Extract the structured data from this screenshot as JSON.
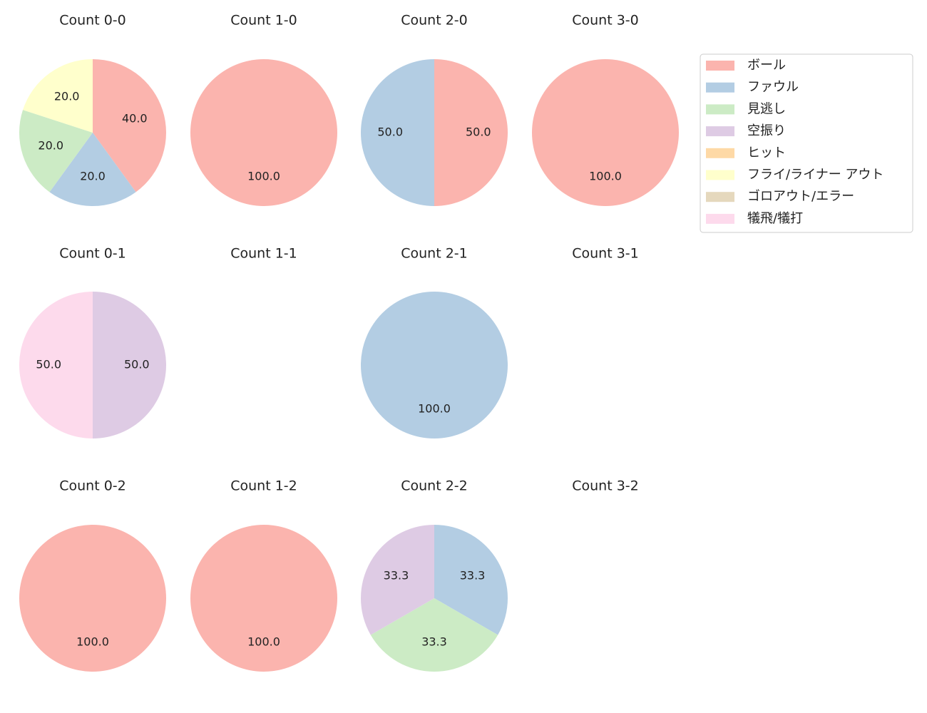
{
  "chart_data": [
    {
      "type": "pie",
      "title": "Count 0-0",
      "categories": [
        "ボール",
        "ファウル",
        "見逃し",
        "フライ/ライナー アウト"
      ],
      "values": [
        40,
        20,
        20,
        20
      ],
      "value_labels": [
        "40.0",
        "20.0",
        "20.0",
        "20.0"
      ]
    },
    {
      "type": "pie",
      "title": "Count 1-0",
      "categories": [
        "ボール"
      ],
      "values": [
        100
      ],
      "value_labels": [
        "100.0"
      ]
    },
    {
      "type": "pie",
      "title": "Count 2-0",
      "categories": [
        "ボール",
        "ファウル"
      ],
      "values": [
        50,
        50
      ],
      "value_labels": [
        "50.0",
        "50.0"
      ]
    },
    {
      "type": "pie",
      "title": "Count 3-0",
      "categories": [
        "ボール"
      ],
      "values": [
        100
      ],
      "value_labels": [
        "100.0"
      ]
    },
    {
      "type": "pie",
      "title": "Count 0-1",
      "categories": [
        "空振り",
        "犠飛/犠打"
      ],
      "values": [
        50,
        50
      ],
      "value_labels": [
        "50.0",
        "50.0"
      ]
    },
    {
      "type": "pie",
      "title": "Count 1-1",
      "categories": [],
      "values": [],
      "value_labels": []
    },
    {
      "type": "pie",
      "title": "Count 2-1",
      "categories": [
        "ファウル"
      ],
      "values": [
        100
      ],
      "value_labels": [
        "100.0"
      ]
    },
    {
      "type": "pie",
      "title": "Count 3-1",
      "categories": [],
      "values": [],
      "value_labels": []
    },
    {
      "type": "pie",
      "title": "Count 0-2",
      "categories": [
        "ボール"
      ],
      "values": [
        100
      ],
      "value_labels": [
        "100.0"
      ]
    },
    {
      "type": "pie",
      "title": "Count 1-2",
      "categories": [
        "ボール"
      ],
      "values": [
        100
      ],
      "value_labels": [
        "100.0"
      ]
    },
    {
      "type": "pie",
      "title": "Count 2-2",
      "categories": [
        "ファウル",
        "見逃し",
        "空振り"
      ],
      "values": [
        33.3,
        33.3,
        33.3
      ],
      "value_labels": [
        "33.3",
        "33.3",
        "33.3"
      ]
    },
    {
      "type": "pie",
      "title": "Count 3-2",
      "categories": [],
      "values": [],
      "value_labels": []
    }
  ],
  "legend": {
    "location": "upper right",
    "entries": [
      {
        "name": "ボール",
        "color": "#fbb4ae"
      },
      {
        "name": "ファウル",
        "color": "#b3cde3"
      },
      {
        "name": "見逃し",
        "color": "#ccebc5"
      },
      {
        "name": "空振り",
        "color": "#decbe4"
      },
      {
        "name": "ヒット",
        "color": "#fed9a6"
      },
      {
        "name": "フライ/ライナー アウト",
        "color": "#ffffcc"
      },
      {
        "name": "ゴロアウト/エラー",
        "color": "#e5d8bd"
      },
      {
        "name": "犠飛/犠打",
        "color": "#fddaec"
      }
    ]
  }
}
